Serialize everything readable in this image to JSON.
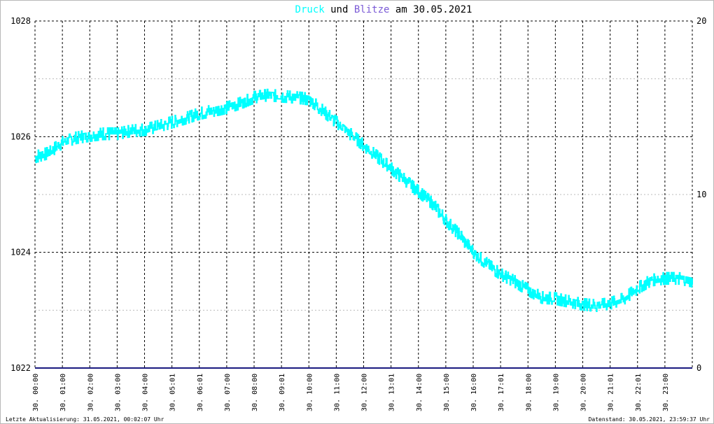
{
  "title": {
    "series1": "Druck",
    "und": " und ",
    "series2": "Blitze",
    "am": " am ",
    "date": "30.05.2021"
  },
  "colors": {
    "druck": "#00ffff",
    "blitze": "#7b5bd6",
    "baseline": "#1a1a80",
    "grid_major": "#000000",
    "grid_minor": "#bbbbbb"
  },
  "footer": {
    "left": "Letzte Aktualisierung: 31.05.2021, 00:02:07 Uhr",
    "right": "Datenstand: 30.05.2021, 23:59:37 Uhr"
  },
  "chart_data": {
    "type": "line",
    "x_unit": "hours",
    "x_tick_labels": [
      "30. 00:00",
      "30. 01:00",
      "30. 02:00",
      "30. 03:00",
      "30. 04:00",
      "30. 05:01",
      "30. 06:01",
      "30. 07:00",
      "30. 08:00",
      "30. 09:01",
      "30. 10:00",
      "30. 11:00",
      "30. 12:00",
      "30. 13:01",
      "30. 14:00",
      "30. 15:00",
      "30. 16:00",
      "30. 17:01",
      "30. 18:00",
      "30. 19:00",
      "30. 20:00",
      "30. 21:01",
      "30. 22:01",
      "30. 23:00"
    ],
    "y_left": {
      "ticks": [
        1022,
        1024,
        1026,
        1028
      ],
      "ylim": [
        1022,
        1028
      ]
    },
    "y_right": {
      "ticks": [
        0,
        10,
        20
      ],
      "ylim": [
        0,
        20
      ]
    },
    "series": [
      {
        "name": "Druck",
        "axis": "left",
        "x": [
          0,
          0.5,
          1,
          1.5,
          2,
          2.5,
          3,
          3.5,
          4,
          4.5,
          5,
          5.5,
          6,
          6.5,
          7,
          7.5,
          8,
          8.5,
          9,
          9.5,
          10,
          10.5,
          11,
          11.5,
          12,
          12.5,
          13,
          13.5,
          14,
          14.5,
          15,
          15.5,
          16,
          16.5,
          17,
          17.5,
          18,
          18.5,
          19,
          19.5,
          20,
          20.5,
          21,
          21.5,
          22,
          22.5,
          23,
          23.5,
          24
        ],
        "y": [
          1025.65,
          1025.72,
          1025.9,
          1025.98,
          1026.02,
          1026.05,
          1026.05,
          1026.1,
          1026.12,
          1026.18,
          1026.25,
          1026.32,
          1026.4,
          1026.45,
          1026.5,
          1026.58,
          1026.68,
          1026.72,
          1026.7,
          1026.68,
          1026.65,
          1026.45,
          1026.25,
          1026.05,
          1025.85,
          1025.65,
          1025.45,
          1025.25,
          1025.05,
          1024.85,
          1024.55,
          1024.3,
          1024.0,
          1023.8,
          1023.62,
          1023.5,
          1023.35,
          1023.22,
          1023.2,
          1023.15,
          1023.1,
          1023.08,
          1023.12,
          1023.2,
          1023.38,
          1023.52,
          1023.55,
          1023.55,
          1023.5
        ]
      },
      {
        "name": "Blitze",
        "axis": "right",
        "x": [
          0,
          24
        ],
        "y": [
          0,
          0
        ]
      }
    ]
  }
}
